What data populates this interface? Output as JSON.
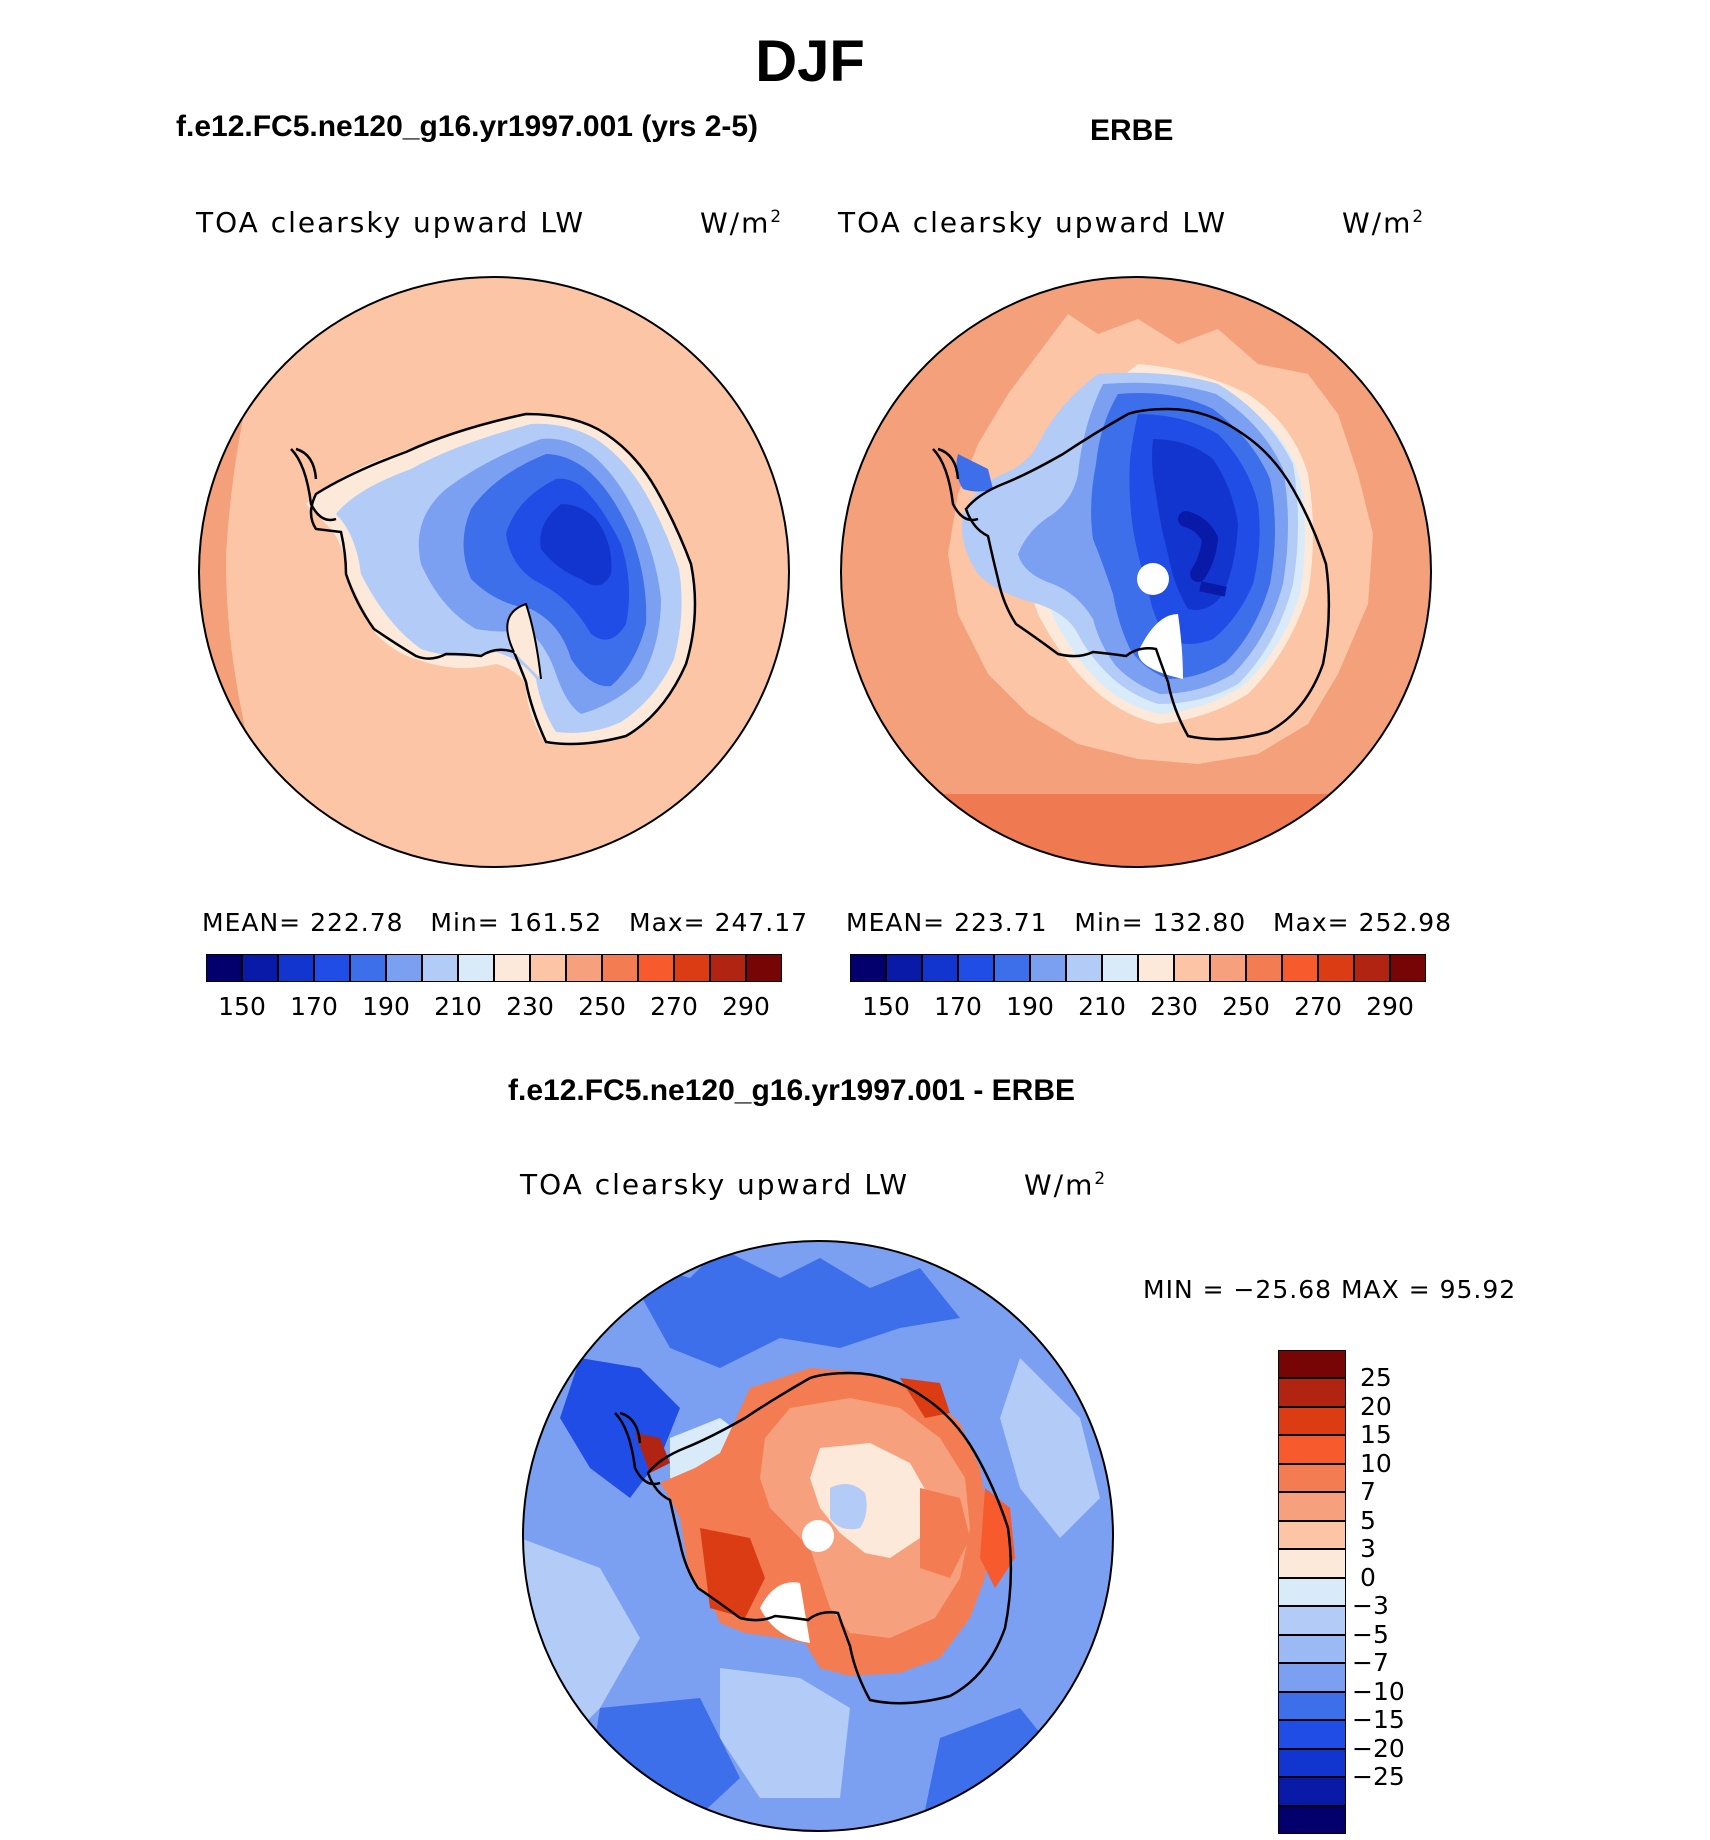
{
  "title": "DJF",
  "panels": [
    {
      "case_title": "f.e12.FC5.ne120_g16.yr1997.001 (yrs 2-5)",
      "variable": "TOA clearsky upward LW",
      "units": "W/m",
      "units_exp": "2",
      "stats": {
        "mean_label": "MEAN=",
        "mean": "222.78",
        "min_label": "Min=",
        "min": "161.52",
        "max_label": "Max=",
        "max": "247.17"
      },
      "outer_color": "#fbc5a6",
      "rim_color": "#f4a07a"
    },
    {
      "case_title": "ERBE",
      "variable": "TOA clearsky upward LW",
      "units": "W/m",
      "units_exp": "2",
      "stats": {
        "mean_label": "MEAN=",
        "mean": "223.71",
        "min_label": "Min=",
        "min": "132.80",
        "max_label": "Max=",
        "max": "252.98"
      },
      "outer_color": "#f4a07a",
      "rim_color": "#ef7a52"
    }
  ],
  "abs_colorbar": {
    "colors": [
      "#03006d",
      "#0a1aa8",
      "#1235d0",
      "#1f4de6",
      "#3e6fea",
      "#7ba0f2",
      "#b2cbf7",
      "#d9eaf9",
      "#fde9d9",
      "#fbc5a6",
      "#f7a07d",
      "#f47c52",
      "#f75a2c",
      "#dc3c14",
      "#b02411",
      "#780505"
    ],
    "ticks": [
      "150",
      "170",
      "190",
      "210",
      "230",
      "250",
      "270",
      "290"
    ]
  },
  "diff": {
    "title": "f.e12.FC5.ne120_g16.yr1997.001 - ERBE",
    "variable": "TOA clearsky upward LW",
    "units": "W/m",
    "units_exp": "2",
    "minmax_text": "MIN = −25.68 MAX =   95.92",
    "colors": [
      "#780505",
      "#b02411",
      "#dc3c14",
      "#f75a2c",
      "#f47c52",
      "#f7a07d",
      "#fbc5a6",
      "#fde9d9",
      "#d9eaf9",
      "#b2cbf7",
      "#9bbaf5",
      "#7ba0f2",
      "#3e6fea",
      "#1f4de6",
      "#1235d0",
      "#0a1aa8",
      "#03006d"
    ],
    "ticks": [
      "25",
      "20",
      "15",
      "10",
      "7",
      "5",
      "3",
      "0",
      "−3",
      "−5",
      "−7",
      "−10",
      "−15",
      "−20",
      "−25"
    ]
  }
}
